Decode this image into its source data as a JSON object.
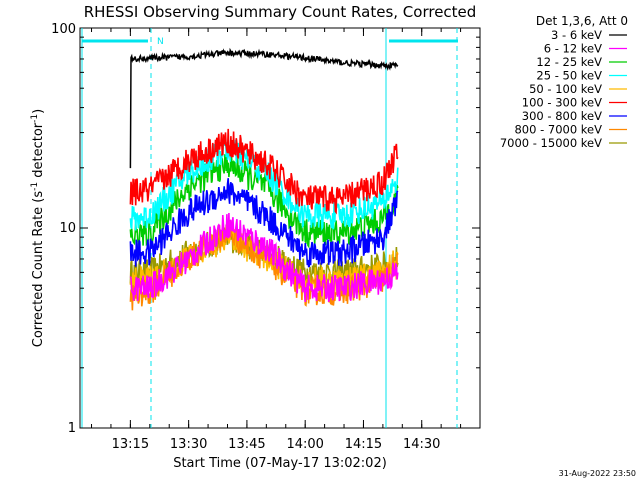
{
  "chart_data": {
    "type": "line",
    "title": "RHESSI Observing Summary Count Rates, Corrected",
    "xlabel": "Start Time (07-May-17 13:02:02)",
    "ylabel": "Corrected Count Rate (s⁻¹ detector⁻¹)",
    "ylabel_parts": {
      "main": "Corrected Count Rate (s",
      "exp1": "-1",
      "mid": " detector",
      "exp2": "-1",
      "end": ")"
    },
    "yscale": "log",
    "ylim": [
      1,
      100
    ],
    "yticks": [
      "1",
      "10",
      "100"
    ],
    "xlim": [
      "13:02:02",
      "14:45:00"
    ],
    "xticks": [
      "13:15",
      "13:30",
      "13:45",
      "14:00",
      "14:15",
      "14:30"
    ],
    "legend_title": "Det 1,3,6, Att 0",
    "legend_position": "right-outside",
    "footer": "31-Aug-2022 23:50",
    "orbit_marker_label": "N",
    "series": [
      {
        "name": "3 - 6 keV",
        "color": "#000000",
        "values": [
          [
            [
              "13:15:00",
              20
            ],
            [
              "13:15:10",
              70
            ],
            [
              "13:30",
              72
            ],
            [
              "13:40",
              75
            ],
            [
              "13:50",
              74
            ],
            [
              "14:00",
              71
            ],
            [
              "14:10",
              67
            ],
            [
              "14:20",
              65
            ],
            [
              "14:24",
              65
            ]
          ]
        ]
      },
      {
        "name": "6 - 12 keV",
        "color": "#ff00ff",
        "values": [
          [
            [
              "13:15:00",
              5
            ],
            [
              "13:20",
              5
            ],
            [
              "13:30",
              7
            ],
            [
              "13:40",
              10.5
            ],
            [
              "13:50",
              8
            ],
            [
              "14:00",
              5
            ],
            [
              "14:10",
              5
            ],
            [
              "14:20",
              5.5
            ],
            [
              "14:24",
              6
            ]
          ]
        ]
      },
      {
        "name": "12 - 25 keV",
        "color": "#00cc00",
        "values": [
          [
            [
              "13:15:00",
              9
            ],
            [
              "13:20",
              9.5
            ],
            [
              "13:30",
              16
            ],
            [
              "13:40",
              21
            ],
            [
              "13:50",
              16
            ],
            [
              "14:00",
              9.5
            ],
            [
              "14:10",
              9.5
            ],
            [
              "14:20",
              11
            ],
            [
              "14:24",
              15
            ]
          ]
        ]
      },
      {
        "name": "25 - 50 keV",
        "color": "#00ffff",
        "values": [
          [
            [
              "13:15:00",
              11
            ],
            [
              "13:20",
              11.5
            ],
            [
              "13:30",
              19
            ],
            [
              "13:40",
              25
            ],
            [
              "13:50",
              19
            ],
            [
              "14:00",
              11.5
            ],
            [
              "14:10",
              11.5
            ],
            [
              "14:20",
              13.5
            ],
            [
              "14:24",
              18
            ]
          ]
        ]
      },
      {
        "name": "50 - 100 keV",
        "color": "#ffbb00",
        "values": [
          [
            [
              "13:15:00",
              5.5
            ],
            [
              "13:20",
              5.5
            ],
            [
              "13:30",
              7
            ],
            [
              "13:40",
              9
            ],
            [
              "13:50",
              7
            ],
            [
              "14:00",
              5.5
            ],
            [
              "14:10",
              5.5
            ],
            [
              "14:20",
              6
            ],
            [
              "14:24",
              7
            ]
          ]
        ]
      },
      {
        "name": "100 - 300 keV",
        "color": "#ff0000",
        "values": [
          [
            [
              "13:15:00",
              15
            ],
            [
              "13:20",
              15.5
            ],
            [
              "13:30",
              22
            ],
            [
              "13:40",
              27
            ],
            [
              "13:50",
              21
            ],
            [
              "14:00",
              14
            ],
            [
              "14:10",
              14
            ],
            [
              "14:20",
              17
            ],
            [
              "14:24",
              25
            ]
          ]
        ]
      },
      {
        "name": "300 - 800 keV",
        "color": "#0000ff",
        "values": [
          [
            [
              "13:15:00",
              7.5
            ],
            [
              "13:20",
              7.5
            ],
            [
              "13:30",
              12
            ],
            [
              "13:40",
              15.5
            ],
            [
              "13:50",
              11.5
            ],
            [
              "14:00",
              7.5
            ],
            [
              "14:10",
              7.5
            ],
            [
              "14:20",
              9
            ],
            [
              "14:24",
              14
            ]
          ]
        ]
      },
      {
        "name": "800 - 7000 keV",
        "color": "#ff8800",
        "values": [
          [
            [
              "13:15:00",
              4.5
            ],
            [
              "13:20",
              4.8
            ],
            [
              "13:30",
              7
            ],
            [
              "13:40",
              9.5
            ],
            [
              "13:50",
              7
            ],
            [
              "14:00",
              4.8
            ],
            [
              "14:10",
              4.8
            ],
            [
              "14:20",
              5.5
            ],
            [
              "14:24",
              6.5
            ]
          ]
        ]
      },
      {
        "name": "7000 - 15000 keV",
        "color": "#999900",
        "values": [
          [
            [
              "13:15:00",
              6
            ],
            [
              "13:20",
              6
            ],
            [
              "13:30",
              7.5
            ],
            [
              "13:40",
              9
            ],
            [
              "13:50",
              7.5
            ],
            [
              "14:00",
              6
            ],
            [
              "14:10",
              6
            ],
            [
              "14:20",
              6.5
            ],
            [
              "14:24",
              7
            ]
          ]
        ]
      }
    ]
  }
}
